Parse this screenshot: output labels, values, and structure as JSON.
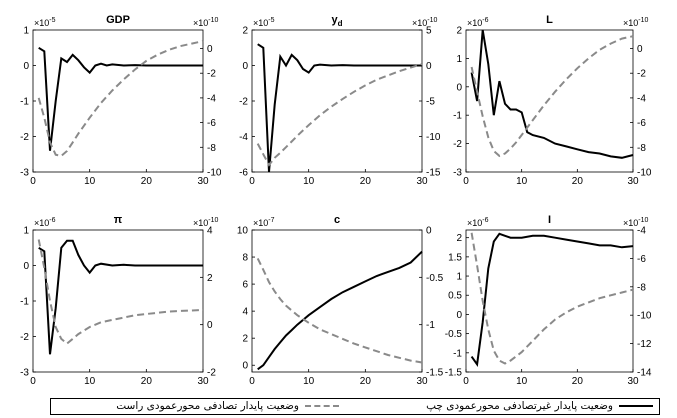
{
  "figure": {
    "legend": {
      "entries": [
        {
          "label": "وضعیت پایدار غیرتصادفی محورعمودی چپ",
          "style": "solid",
          "color": "#000000"
        },
        {
          "label": "وضعیت پایدار تصادفی محورعمودی راست",
          "style": "dashed",
          "color": "#8a8a8a"
        }
      ]
    }
  },
  "chart_data": [
    {
      "type": "line",
      "title": "GDP",
      "x_ticks": [
        "0",
        "10",
        "20",
        "30"
      ],
      "xlim": [
        0,
        30
      ],
      "left_axis": {
        "exponent": "×10",
        "power": "-5",
        "ticks": [
          "-3",
          "-2",
          "-1",
          "0",
          "1"
        ],
        "ylim": [
          -3,
          1
        ]
      },
      "right_axis": {
        "exponent": "×10",
        "power": "-10",
        "ticks": [
          "-10",
          "-8",
          "-6",
          "-4",
          "-2",
          "0"
        ],
        "ylim": [
          -10,
          1.5
        ]
      },
      "series": [
        {
          "axis": "left",
          "style": "solid",
          "x": [
            1,
            2,
            3,
            4,
            5,
            6,
            7,
            8,
            9,
            10,
            11,
            12,
            13,
            14,
            16,
            18,
            20,
            25,
            30
          ],
          "y": [
            0.5,
            0.4,
            -2.4,
            -1.0,
            0.2,
            0.1,
            0.3,
            0.15,
            -0.05,
            -0.2,
            0.0,
            0.05,
            0.0,
            0.03,
            0.0,
            0.01,
            0.0,
            0.0,
            0.0
          ]
        },
        {
          "axis": "right",
          "style": "dashed",
          "x": [
            1,
            2,
            3,
            4,
            5,
            6,
            7,
            8,
            10,
            12,
            14,
            16,
            18,
            20,
            22,
            24,
            26,
            28,
            30
          ],
          "y": [
            -4.0,
            -5.6,
            -7.6,
            -8.6,
            -8.7,
            -8.3,
            -7.6,
            -6.9,
            -5.6,
            -4.4,
            -3.4,
            -2.5,
            -1.7,
            -1.0,
            -0.5,
            -0.1,
            0.2,
            0.4,
            0.6
          ]
        }
      ]
    },
    {
      "type": "line",
      "title": "y",
      "title_sub": "d",
      "x_ticks": [
        "0",
        "10",
        "20",
        "30"
      ],
      "xlim": [
        0,
        30
      ],
      "left_axis": {
        "exponent": "×10",
        "power": "-5",
        "ticks": [
          "-6",
          "-4",
          "-2",
          "0",
          "2"
        ],
        "ylim": [
          -6,
          2
        ]
      },
      "right_axis": {
        "exponent": "×10",
        "power": "-10",
        "ticks": [
          "-15",
          "-10",
          "-5",
          "0",
          "5"
        ],
        "ylim": [
          -15,
          5
        ]
      },
      "series": [
        {
          "axis": "left",
          "style": "solid",
          "x": [
            1,
            2,
            3,
            4,
            5,
            6,
            7,
            8,
            9,
            10,
            11,
            12,
            14,
            16,
            18,
            20,
            25,
            30
          ],
          "y": [
            1.2,
            1.0,
            -6.0,
            -2.2,
            0.5,
            0.0,
            0.6,
            0.3,
            -0.2,
            -0.4,
            0.0,
            0.05,
            0.0,
            0.02,
            0.0,
            0.0,
            0.0,
            0.0
          ]
        },
        {
          "axis": "right",
          "style": "dashed",
          "x": [
            1,
            2,
            3,
            4,
            5,
            6,
            7,
            8,
            10,
            12,
            14,
            16,
            18,
            20,
            22,
            24,
            26,
            28,
            30
          ],
          "y": [
            -11.0,
            -12.5,
            -14.0,
            -13.0,
            -12.3,
            -11.5,
            -10.7,
            -9.9,
            -8.4,
            -7.0,
            -5.8,
            -4.7,
            -3.7,
            -2.8,
            -2.0,
            -1.4,
            -0.8,
            -0.3,
            0.2
          ]
        }
      ]
    },
    {
      "type": "line",
      "title": "L",
      "x_ticks": [
        "0",
        "10",
        "20",
        "30"
      ],
      "xlim": [
        0,
        30
      ],
      "left_axis": {
        "exponent": "×10",
        "power": "-6",
        "ticks": [
          "-3",
          "-2",
          "-1",
          "0",
          "1",
          "2"
        ],
        "ylim": [
          -3,
          2
        ]
      },
      "right_axis": {
        "exponent": "×10",
        "power": "-10",
        "ticks": [
          "-10",
          "-8",
          "-6",
          "-4",
          "-2",
          "0"
        ],
        "ylim": [
          -10,
          1.5
        ]
      },
      "series": [
        {
          "axis": "left",
          "style": "solid",
          "x": [
            1,
            2,
            3,
            4,
            5,
            6,
            7,
            8,
            9,
            10,
            11,
            12,
            14,
            16,
            18,
            20,
            22,
            24,
            26,
            28,
            30
          ],
          "y": [
            0.5,
            -0.5,
            2.0,
            0.8,
            -1.0,
            0.2,
            -0.6,
            -0.8,
            -0.8,
            -0.9,
            -1.6,
            -1.7,
            -1.8,
            -2.0,
            -2.1,
            -2.2,
            -2.3,
            -2.35,
            -2.45,
            -2.5,
            -2.4
          ]
        },
        {
          "axis": "right",
          "style": "dashed",
          "x": [
            1,
            2,
            3,
            4,
            5,
            6,
            7,
            8,
            9,
            10,
            12,
            14,
            16,
            18,
            20,
            22,
            24,
            26,
            28,
            30
          ],
          "y": [
            -1.5,
            -3.5,
            -5.5,
            -7.2,
            -8.3,
            -8.7,
            -8.5,
            -8.1,
            -7.6,
            -7.0,
            -5.8,
            -4.6,
            -3.5,
            -2.5,
            -1.6,
            -0.8,
            -0.1,
            0.4,
            0.8,
            1.0
          ]
        }
      ]
    },
    {
      "type": "line",
      "title": "π",
      "x_ticks": [
        "0",
        "10",
        "20",
        "30"
      ],
      "xlim": [
        0,
        30
      ],
      "left_axis": {
        "exponent": "×10",
        "power": "-6",
        "ticks": [
          "-3",
          "-2",
          "-1",
          "0",
          "1"
        ],
        "ylim": [
          -3,
          1
        ]
      },
      "right_axis": {
        "exponent": "×10",
        "power": "-10",
        "ticks": [
          "-2",
          "0",
          "2",
          "4"
        ],
        "ylim": [
          -2,
          4
        ]
      },
      "series": [
        {
          "axis": "left",
          "style": "solid",
          "x": [
            1,
            2,
            3,
            4,
            5,
            6,
            7,
            8,
            9,
            10,
            11,
            12,
            14,
            16,
            18,
            20,
            25,
            30
          ],
          "y": [
            0.5,
            0.4,
            -2.5,
            -1.2,
            0.5,
            0.7,
            0.7,
            0.3,
            0.0,
            -0.2,
            0.0,
            0.05,
            0.0,
            0.02,
            0.0,
            0.0,
            0.0,
            0.0
          ]
        },
        {
          "axis": "right",
          "style": "dashed",
          "x": [
            1,
            2,
            3,
            4,
            5,
            6,
            7,
            8,
            10,
            12,
            14,
            16,
            18,
            20,
            22,
            24,
            26,
            28,
            30
          ],
          "y": [
            3.6,
            2.4,
            1.0,
            -0.1,
            -0.6,
            -0.8,
            -0.6,
            -0.4,
            -0.1,
            0.1,
            0.2,
            0.3,
            0.4,
            0.45,
            0.5,
            0.55,
            0.58,
            0.6,
            0.62
          ]
        }
      ]
    },
    {
      "type": "line",
      "title": "c",
      "x_ticks": [
        "0",
        "10",
        "20",
        "30"
      ],
      "xlim": [
        0,
        30
      ],
      "left_axis": {
        "exponent": "×10",
        "power": "-7",
        "ticks": [
          "0",
          "2",
          "4",
          "6",
          "8",
          "10"
        ],
        "ylim": [
          -0.5,
          10
        ]
      },
      "right_axis": {
        "exponent": "",
        "power": "",
        "ticks": [
          "-1.5",
          "-1",
          "-0.5",
          "0"
        ],
        "ylim": [
          -1.5,
          0
        ]
      },
      "series": [
        {
          "axis": "left",
          "style": "solid",
          "x": [
            1,
            2,
            3,
            4,
            5,
            6,
            7,
            8,
            10,
            12,
            14,
            16,
            18,
            20,
            22,
            24,
            26,
            28,
            30
          ],
          "y": [
            -0.3,
            0.0,
            0.6,
            1.2,
            1.7,
            2.2,
            2.6,
            3.0,
            3.7,
            4.3,
            4.9,
            5.4,
            5.8,
            6.2,
            6.6,
            6.9,
            7.2,
            7.6,
            8.4
          ]
        },
        {
          "axis": "right",
          "style": "dashed",
          "x": [
            1,
            2,
            3,
            4,
            5,
            6,
            7,
            8,
            10,
            12,
            14,
            16,
            18,
            20,
            22,
            24,
            26,
            28,
            30
          ],
          "y": [
            -0.3,
            -0.42,
            -0.55,
            -0.65,
            -0.73,
            -0.8,
            -0.85,
            -0.9,
            -0.98,
            -1.05,
            -1.1,
            -1.15,
            -1.2,
            -1.24,
            -1.28,
            -1.32,
            -1.35,
            -1.38,
            -1.4
          ]
        }
      ]
    },
    {
      "type": "line",
      "title": "I",
      "x_ticks": [
        "0",
        "10",
        "20",
        "30"
      ],
      "xlim": [
        0,
        30
      ],
      "left_axis": {
        "exponent": "×10",
        "power": "-6",
        "ticks": [
          "-1.5",
          "-1",
          "-0.5",
          "0",
          "0.5",
          "1",
          "1.5",
          "2"
        ],
        "ylim": [
          -1.5,
          2.2
        ]
      },
      "right_axis": {
        "exponent": "×10",
        "power": "-10",
        "ticks": [
          "-14",
          "-12",
          "-10",
          "-8",
          "-6",
          "-4"
        ],
        "ylim": [
          -14,
          -4
        ]
      },
      "series": [
        {
          "axis": "left",
          "style": "solid",
          "x": [
            1,
            2,
            3,
            4,
            5,
            6,
            7,
            8,
            10,
            12,
            14,
            16,
            18,
            20,
            22,
            24,
            26,
            28,
            30
          ],
          "y": [
            -1.1,
            -1.3,
            -0.2,
            1.2,
            1.9,
            2.1,
            2.05,
            2.0,
            2.0,
            2.05,
            2.05,
            2.0,
            1.95,
            1.9,
            1.85,
            1.8,
            1.8,
            1.75,
            1.78
          ]
        },
        {
          "axis": "right",
          "style": "dashed",
          "x": [
            1,
            2,
            3,
            4,
            5,
            6,
            7,
            8,
            10,
            12,
            14,
            16,
            18,
            20,
            22,
            24,
            26,
            28,
            30
          ],
          "y": [
            -4.2,
            -6.5,
            -9.0,
            -11.0,
            -12.5,
            -13.2,
            -13.4,
            -13.2,
            -12.6,
            -11.8,
            -11.0,
            -10.3,
            -9.8,
            -9.4,
            -9.1,
            -8.8,
            -8.6,
            -8.4,
            -8.2
          ]
        }
      ]
    }
  ]
}
